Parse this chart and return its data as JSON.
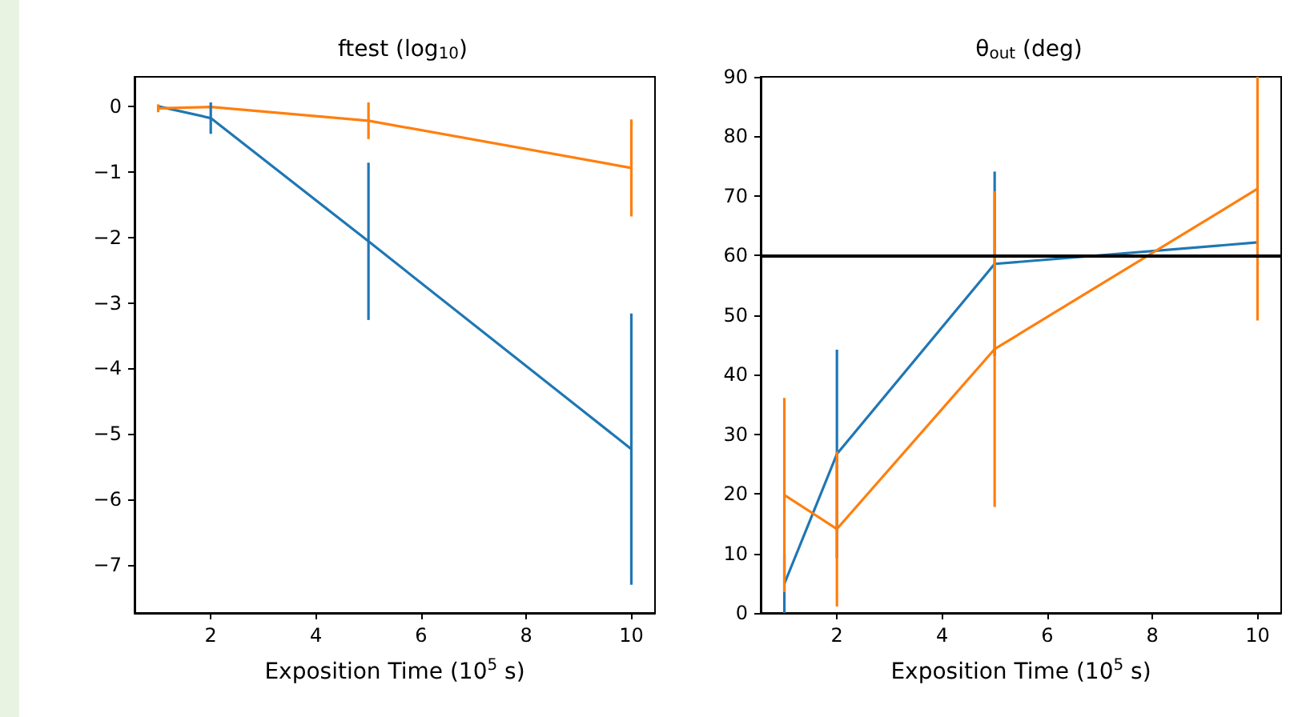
{
  "chart_data": [
    {
      "type": "line",
      "title": "ftest (log$_{10}$)",
      "xlabel": "Exposition Time (10$^{5}$ s)",
      "x": [
        1,
        2,
        5,
        10
      ],
      "series": [
        {
          "color": "#1f77b4",
          "values": [
            0,
            -0.18,
            -2.06,
            -5.23
          ],
          "errors": [
            null,
            0.24,
            1.2,
            2.07
          ]
        },
        {
          "color": "#ff7f0e",
          "values": [
            -0.03,
            -0.01,
            -0.22,
            -0.94
          ],
          "errors": [
            0.06,
            null,
            0.28,
            0.74
          ]
        }
      ],
      "xlim": [
        0.55,
        10.45
      ],
      "xticks": [
        2,
        4,
        6,
        8,
        10
      ],
      "ylim": [
        -7.73,
        0.45
      ],
      "yticks": [
        {
          "value": -7,
          "label": "−7"
        },
        {
          "value": -6,
          "label": "−6"
        },
        {
          "value": -5,
          "label": "−5"
        },
        {
          "value": -4,
          "label": "−4"
        },
        {
          "value": -3,
          "label": "−3"
        },
        {
          "value": -2,
          "label": "−2"
        },
        {
          "value": -1,
          "label": "−1"
        },
        0
      ],
      "grid": false,
      "marker": "none",
      "line_style": "solid"
    },
    {
      "type": "line",
      "title": "θ$_{out}$ (deg)",
      "xlabel": "Exposition Time (10$^{5}$ s)",
      "x": [
        1,
        2,
        5,
        10
      ],
      "series": [
        {
          "color": "#1f77b4",
          "values": [
            4.9,
            26.7,
            58.6,
            62.2
          ],
          "errors": [
            4.9,
            17.5,
            15.5,
            null
          ]
        },
        {
          "color": "#ff7f0e",
          "values": [
            19.8,
            14.1,
            44.3,
            71.2
          ],
          "errors": [
            16.3,
            13,
            26.5,
            [
              49.1,
              90
            ]
          ]
        }
      ],
      "xlim": [
        0.55,
        10.45
      ],
      "xticks": [
        2,
        4,
        6,
        8,
        10
      ],
      "ylim": [
        0,
        90
      ],
      "yticks": [
        0,
        10,
        20,
        30,
        40,
        50,
        60,
        70,
        80,
        90
      ],
      "ref_lines": [
        {
          "axis": "y",
          "value": 60,
          "color": "#000000"
        }
      ],
      "grid": false,
      "marker": "none",
      "line_style": "solid"
    }
  ]
}
